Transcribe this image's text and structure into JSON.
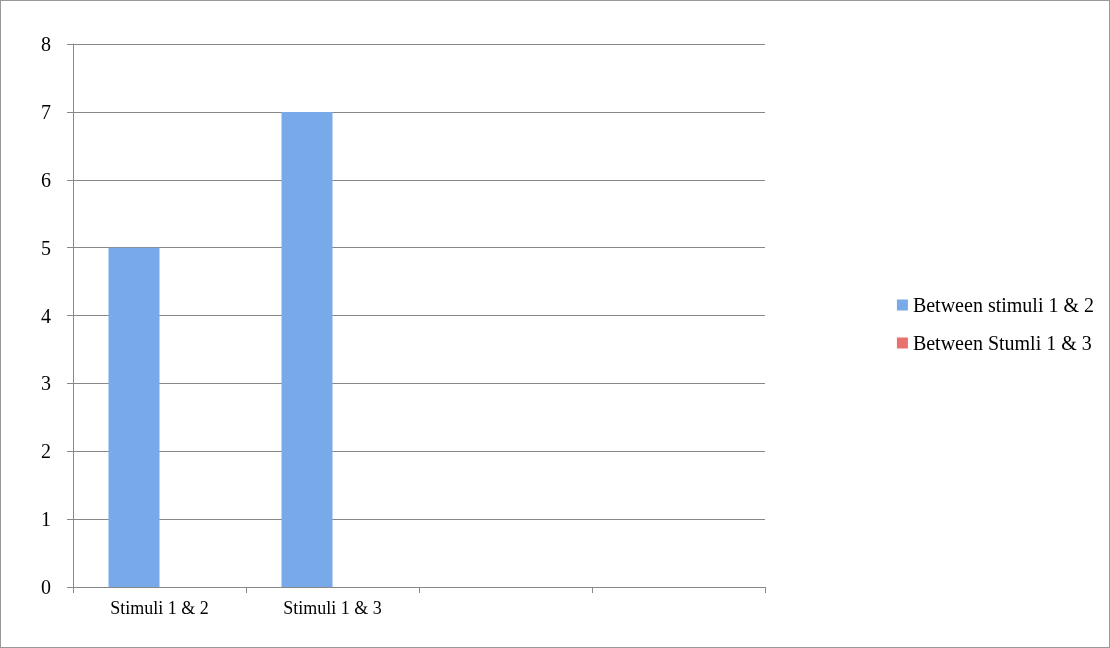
{
  "chart_data": {
    "type": "bar",
    "categories": [
      "Stimuli 1 & 2",
      "Stimuli 1 & 3",
      null,
      null
    ],
    "series": [
      {
        "name": "Between stimuli 1 & 2",
        "color": "#78aaea",
        "values": [
          5,
          7,
          null,
          null
        ]
      },
      {
        "name": "Between Stumli 1 & 3",
        "color": "#e8716e",
        "values": [
          null,
          null,
          null,
          null
        ]
      }
    ],
    "ylim": [
      0,
      8
    ],
    "yticks": [
      0,
      1,
      2,
      3,
      4,
      5,
      6,
      7,
      8
    ],
    "grid": "y",
    "legend": "right"
  }
}
